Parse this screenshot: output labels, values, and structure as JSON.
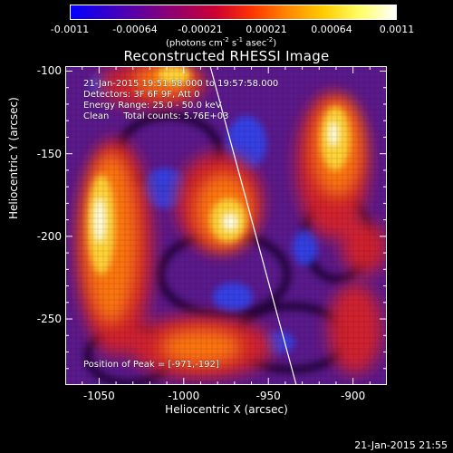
{
  "colorbar": {
    "tick_labels": [
      "-0.0011",
      "-0.00064",
      "-0.00021",
      "0.00021",
      "0.00064",
      "0.0011"
    ],
    "units": "(photons cm",
    "units_exp1": "-2",
    "units_mid": " s",
    "units_exp2": "-1",
    "units_end": " asec",
    "units_exp3": "-2",
    "units_close": ")",
    "colors": [
      "#0000ff",
      "#3300cc",
      "#660099",
      "#990066",
      "#cc0033",
      "#ff3300",
      "#ff8800",
      "#ffcc00",
      "#ffff66",
      "#ffffff"
    ]
  },
  "plot": {
    "title": "Reconstructed RHESSI Image",
    "annotation_lines": [
      "21-Jan-2015 19:51:58.000 to 19:57:58.000",
      "Detectors: 3F 6F 9F, Att 0",
      "Energy Range: 25.0 - 50.0 keV",
      "Clean     Total counts: 5.76E+03"
    ],
    "peak_label": "Position of Peak = [-971,-192]",
    "xlabel": "Heliocentric X (arcsec)",
    "ylabel": "Heliocentric Y (arcsec)",
    "xticks": [
      "-1050",
      "-1000",
      "-950",
      "-900"
    ],
    "yticks": [
      "-100",
      "-150",
      "-200",
      "-250"
    ],
    "xlim": [
      -1070,
      -880
    ],
    "ylim": [
      -290,
      -97
    ]
  },
  "footer": {
    "timestamp": "21-Jan-2015 21:55"
  }
}
